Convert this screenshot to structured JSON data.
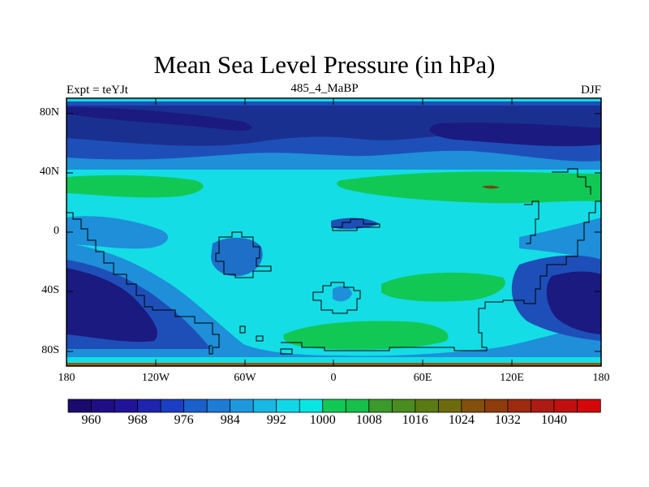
{
  "title": "Mean Sea Level Pressure (in hPa)",
  "subtitle_left": "Expt = teYJt",
  "subtitle_center": "485_4_MaBP",
  "subtitle_right": "DJF",
  "lat_ticks": [
    "80N",
    "40N",
    "0",
    "40S",
    "80S"
  ],
  "lon_ticks": [
    "180",
    "120W",
    "60W",
    "0",
    "60E",
    "120E",
    "180"
  ],
  "colorbar": {
    "labels": [
      "960",
      "968",
      "976",
      "984",
      "992",
      "1000",
      "1008",
      "1016",
      "1024",
      "1032",
      "1040"
    ],
    "colors": [
      "#1a0a6e",
      "#1f0e86",
      "#22149a",
      "#1e24ad",
      "#1a3ec4",
      "#1a60cc",
      "#1e7bd6",
      "#1e99de",
      "#18b8e4",
      "#10d8e8",
      "#08e6e4",
      "#12c855",
      "#16c04a",
      "#3c9a2c",
      "#4a8c20",
      "#5a7a14",
      "#6e6a0e",
      "#82500c",
      "#8e3c0c",
      "#9e2a10",
      "#ae1a14",
      "#c01010",
      "#d40808"
    ]
  },
  "chart_data": {
    "type": "heatmap",
    "title": "Mean Sea Level Pressure (in hPa)",
    "variable": "Mean Sea Level Pressure",
    "units": "hPa",
    "experiment": "teYJt",
    "period_label": "485_4_MaBP",
    "season": "DJF",
    "xlim": [
      -180,
      180
    ],
    "ylim": [
      -90,
      90
    ],
    "colorbar_levels": [
      960,
      968,
      976,
      984,
      992,
      1000,
      1008,
      1016,
      1024,
      1032,
      1040
    ]
  },
  "colors": {
    "low_deep": "#1a1a80",
    "low_mid": "#1e4fb8",
    "mid": "#1e8fd8",
    "background_field": "#14dde6",
    "high": "#12c855"
  }
}
